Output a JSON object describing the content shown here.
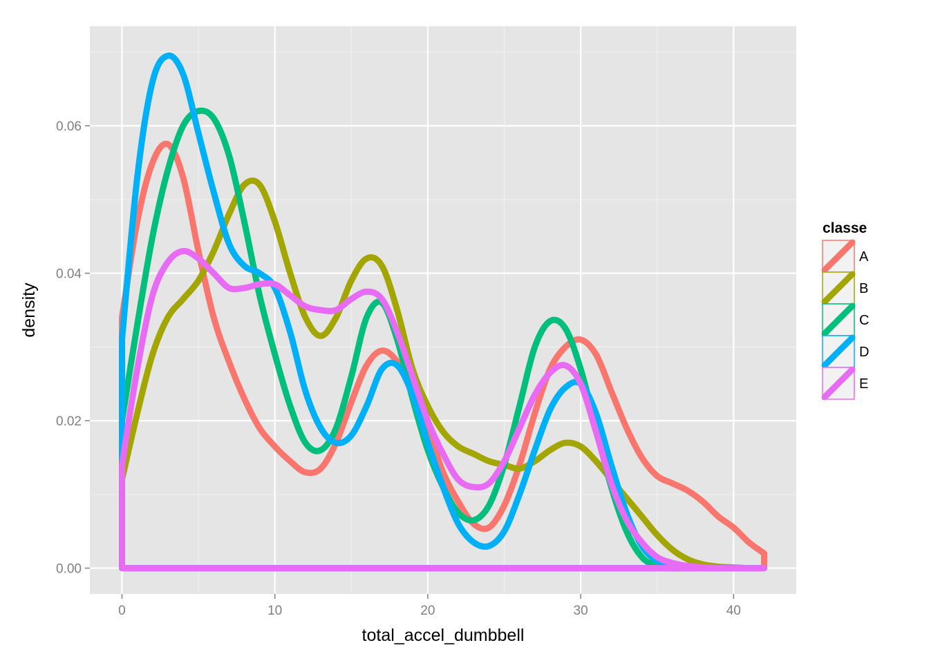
{
  "chart_data": {
    "type": "line",
    "xlabel": "total_accel_dumbbell",
    "ylabel": "density",
    "xlim": [
      -2.1,
      44.1
    ],
    "ylim": [
      -0.0035,
      0.0735
    ],
    "x_ticks": [
      0,
      10,
      20,
      30,
      40
    ],
    "x_tick_labels": [
      "0",
      "10",
      "20",
      "30",
      "40"
    ],
    "y_ticks": [
      0.0,
      0.02,
      0.04,
      0.06
    ],
    "y_tick_labels": [
      "0.00",
      "0.02",
      "0.04",
      "0.06"
    ],
    "grid": true,
    "legend": {
      "title": "classe",
      "position": "right"
    },
    "series": [
      {
        "name": "A",
        "color": "#F8766D",
        "x": [
          0,
          1,
          2,
          3,
          4,
          5,
          6,
          7,
          8,
          9,
          10,
          11,
          12,
          13,
          14,
          15,
          16,
          17,
          18,
          19,
          20,
          21,
          22,
          23,
          24,
          25,
          26,
          27,
          28,
          29,
          30,
          31,
          32,
          33,
          34,
          35,
          36,
          37,
          38,
          39,
          40,
          41,
          42
        ],
        "y": [
          0.034,
          0.047,
          0.055,
          0.0575,
          0.053,
          0.043,
          0.034,
          0.028,
          0.023,
          0.019,
          0.0165,
          0.0145,
          0.013,
          0.0135,
          0.017,
          0.0225,
          0.0275,
          0.0295,
          0.028,
          0.024,
          0.019,
          0.013,
          0.009,
          0.006,
          0.0055,
          0.0085,
          0.014,
          0.021,
          0.027,
          0.03,
          0.031,
          0.029,
          0.024,
          0.019,
          0.015,
          0.0125,
          0.0115,
          0.0105,
          0.009,
          0.007,
          0.0055,
          0.0035,
          0.002
        ]
      },
      {
        "name": "B",
        "color": "#A3A500",
        "x": [
          0,
          1,
          2,
          3,
          4,
          5,
          6,
          7,
          8,
          9,
          10,
          11,
          12,
          13,
          14,
          15,
          16,
          17,
          18,
          19,
          20,
          21,
          22,
          23,
          24,
          25,
          26,
          27,
          28,
          29,
          30,
          31,
          32,
          33,
          34,
          35,
          36,
          37,
          38,
          39,
          40,
          41,
          42
        ],
        "y": [
          0.012,
          0.021,
          0.029,
          0.034,
          0.0365,
          0.039,
          0.043,
          0.048,
          0.052,
          0.052,
          0.047,
          0.04,
          0.034,
          0.0315,
          0.034,
          0.039,
          0.042,
          0.041,
          0.035,
          0.027,
          0.022,
          0.0185,
          0.0165,
          0.0155,
          0.0145,
          0.014,
          0.0135,
          0.0145,
          0.016,
          0.017,
          0.0165,
          0.0145,
          0.012,
          0.0095,
          0.007,
          0.0045,
          0.0025,
          0.0012,
          0.0005,
          0.0002,
          0.0001,
          0.0,
          0.0
        ]
      },
      {
        "name": "C",
        "color": "#00BF7D",
        "x": [
          0,
          1,
          2,
          3,
          4,
          5,
          6,
          7,
          8,
          9,
          10,
          11,
          12,
          13,
          14,
          15,
          16,
          17,
          18,
          19,
          20,
          21,
          22,
          23,
          24,
          25,
          26,
          27,
          28,
          29,
          30,
          31,
          32,
          33,
          34,
          35,
          36,
          37,
          38,
          39,
          40,
          41,
          42
        ],
        "y": [
          0.02,
          0.033,
          0.045,
          0.054,
          0.06,
          0.062,
          0.061,
          0.056,
          0.047,
          0.037,
          0.029,
          0.022,
          0.017,
          0.016,
          0.019,
          0.026,
          0.034,
          0.036,
          0.031,
          0.023,
          0.016,
          0.011,
          0.0075,
          0.0065,
          0.0085,
          0.014,
          0.022,
          0.03,
          0.0335,
          0.0325,
          0.027,
          0.019,
          0.011,
          0.005,
          0.0015,
          0.0003,
          0.0,
          0.0,
          0.0,
          0.0,
          0.0,
          0.0,
          0.0
        ]
      },
      {
        "name": "D",
        "color": "#00B0F6",
        "x": [
          0,
          1,
          2,
          3,
          4,
          5,
          6,
          7,
          8,
          9,
          10,
          11,
          12,
          13,
          14,
          15,
          16,
          17,
          18,
          19,
          20,
          21,
          22,
          23,
          24,
          25,
          26,
          27,
          28,
          29,
          30,
          31,
          32,
          33,
          34,
          35,
          36,
          37,
          38,
          39,
          40,
          41,
          42
        ],
        "y": [
          0.031,
          0.053,
          0.066,
          0.0695,
          0.067,
          0.059,
          0.051,
          0.044,
          0.041,
          0.04,
          0.038,
          0.032,
          0.024,
          0.019,
          0.017,
          0.018,
          0.022,
          0.027,
          0.0275,
          0.0235,
          0.017,
          0.011,
          0.006,
          0.0035,
          0.003,
          0.005,
          0.01,
          0.016,
          0.0215,
          0.0245,
          0.025,
          0.021,
          0.014,
          0.0075,
          0.003,
          0.001,
          0.0003,
          0.0001,
          0.0,
          0.0,
          0.0,
          0.0,
          0.0
        ]
      },
      {
        "name": "E",
        "color": "#E76BF3",
        "x": [
          0,
          1,
          2,
          3,
          4,
          5,
          6,
          7,
          8,
          9,
          10,
          11,
          12,
          13,
          14,
          15,
          16,
          17,
          18,
          19,
          20,
          21,
          22,
          23,
          24,
          25,
          26,
          27,
          28,
          29,
          30,
          31,
          32,
          33,
          34,
          35,
          36,
          37,
          38,
          39,
          40,
          41,
          42
        ],
        "y": [
          0.014,
          0.027,
          0.037,
          0.0415,
          0.043,
          0.042,
          0.04,
          0.038,
          0.038,
          0.0385,
          0.0385,
          0.037,
          0.0355,
          0.035,
          0.035,
          0.0365,
          0.0375,
          0.0365,
          0.032,
          0.026,
          0.02,
          0.0155,
          0.012,
          0.011,
          0.0115,
          0.0145,
          0.019,
          0.0235,
          0.0265,
          0.0275,
          0.025,
          0.0185,
          0.0115,
          0.0065,
          0.0035,
          0.0015,
          0.0007,
          0.0003,
          0.0001,
          0.0,
          0.0,
          0.0,
          0.0
        ]
      }
    ]
  }
}
